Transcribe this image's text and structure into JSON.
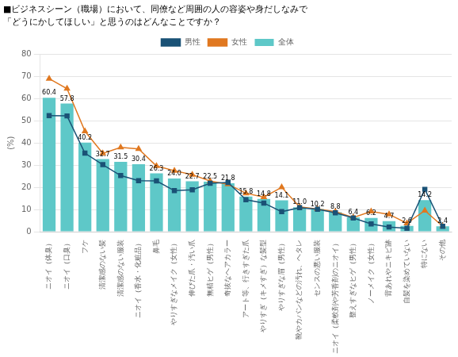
{
  "chart_data": {
    "type": "bar",
    "title": "■ビジネスシーン（職場）において、同僚など周囲の人の容姿や身だしなみで",
    "subtitle": "「どうにかしてほしい」と思うのはどんなことですか？",
    "ylabel": "(%)",
    "categories": [
      "ニオイ（体臭）",
      "ニオイ（口臭）",
      "フケ",
      "清潔感のない髪",
      "清潔感のない服装",
      "ニオイ（香水・化粧品）",
      "鼻毛",
      "やりすぎなメイク（女性）",
      "伸びた爪・汚い爪",
      "無精ヒゲ（男性）",
      "奇抜なヘアカラー",
      "アート等、行きすぎた爪",
      "やりすぎ（キメすぎ）な髪型",
      "やりすぎな眉（男性）",
      "靴やカバンなどの汚れ、ヘタレ",
      "センスの悪い服装",
      "ニオイ（柔軟剤や芳香剤のニオイ）",
      "整えすぎなヒゲ（男性）",
      "ノーメイク（女性）",
      "背あれやニキビ跡",
      "自髪を染めていない",
      "特にない",
      "その他"
    ],
    "series": [
      {
        "name": "全体",
        "type": "bar",
        "color": "#5ec8c8",
        "data_labels": true,
        "values": [
          60.4,
          57.8,
          40.2,
          32.7,
          31.5,
          30.4,
          26.3,
          24.0,
          22.7,
          22.5,
          21.8,
          15.8,
          14.8,
          14.1,
          11.0,
          10.2,
          8.8,
          6.4,
          6.2,
          4.7,
          2.6,
          14.2,
          2.4
        ],
        "value_labels": [
          "60.4",
          "57.8",
          "40.2",
          "32.7",
          "31.5",
          "30.4",
          "26.3",
          "24.0",
          "22.7",
          "22.5",
          "21.8",
          "15.8",
          "14.8",
          "14.1",
          "11.0",
          "10.2",
          "8.8",
          "6.4",
          "6.2",
          "4.7",
          "2.6",
          "14.2",
          "2.4"
        ]
      },
      {
        "name": "男性",
        "type": "line",
        "color": "#1a5276",
        "marker": "square",
        "line_style": "solid",
        "values": [
          52.3,
          52.2,
          35.4,
          30.2,
          25.3,
          23.0,
          22.9,
          18.5,
          18.9,
          21.8,
          22.2,
          14.4,
          12.9,
          9.0,
          10.8,
          10.1,
          8.5,
          6.2,
          3.5,
          2.1,
          1.5,
          19.1,
          2.4
        ]
      },
      {
        "name": "女性",
        "type": "line",
        "color": "#e07820",
        "marker": "triangle",
        "line_style": "solid",
        "values": [
          69.0,
          64.5,
          45.3,
          35.3,
          38.0,
          37.3,
          29.6,
          27.5,
          25.7,
          22.8,
          21.4,
          17.3,
          15.6,
          20.0,
          11.2,
          10.2,
          9.0,
          6.4,
          9.1,
          7.8,
          3.8,
          9.5,
          2.4
        ]
      }
    ],
    "ylim": [
      0,
      80
    ],
    "yticks": [
      0,
      10,
      20,
      30,
      40,
      50,
      60,
      70,
      80
    ],
    "grid": true,
    "legend": "top"
  }
}
